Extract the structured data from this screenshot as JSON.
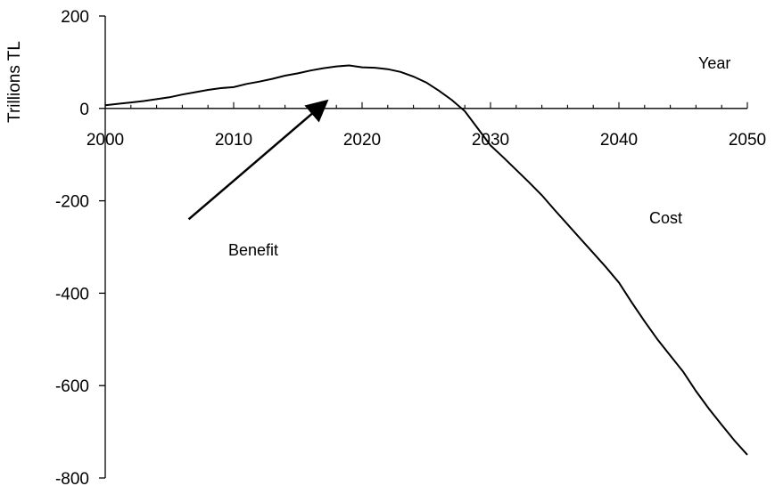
{
  "chart_data": {
    "type": "line",
    "title": "",
    "xlabel": "Year",
    "ylabel": "Trillions TL",
    "xlim": [
      2000,
      2050
    ],
    "ylim": [
      -800,
      200
    ],
    "x_ticks": [
      2000,
      2010,
      2020,
      2030,
      2040,
      2050
    ],
    "y_ticks": [
      200,
      0,
      -200,
      -400,
      -600,
      -800
    ],
    "grid": false,
    "legend": "none",
    "line_color": "#000000",
    "series": [
      {
        "x": [
          2000,
          2001,
          2002,
          2003,
          2004,
          2005,
          2006,
          2007,
          2008,
          2009,
          2010,
          2011,
          2012,
          2013,
          2014,
          2015,
          2016,
          2017,
          2018,
          2019,
          2020,
          2021,
          2022,
          2023,
          2024,
          2025,
          2026,
          2027,
          2028,
          2029,
          2030,
          2031,
          2032,
          2033,
          2034,
          2035,
          2036,
          2037,
          2038,
          2039,
          2040,
          2041,
          2042,
          2043,
          2044,
          2045,
          2046,
          2047,
          2048,
          2049,
          2050
        ],
        "values": [
          7,
          10,
          13,
          16,
          20,
          24,
          30,
          35,
          40,
          44,
          46,
          53,
          58,
          64,
          71,
          76,
          82,
          87,
          91,
          93,
          89,
          88,
          85,
          79,
          69,
          56,
          38,
          18,
          -6,
          -43,
          -80,
          -106,
          -133,
          -160,
          -188,
          -220,
          -251,
          -282,
          -313,
          -344,
          -377,
          -420,
          -461,
          -500,
          -535,
          -570,
          -612,
          -650,
          -685,
          -719,
          -750
        ]
      }
    ],
    "annotations": {
      "benefit_label": "Benefit",
      "benefit_arrow": {
        "from": [
          2006.5,
          -240
        ],
        "to": [
          2017,
          10
        ]
      },
      "cost_label": "Cost",
      "year_label": "Year"
    }
  }
}
